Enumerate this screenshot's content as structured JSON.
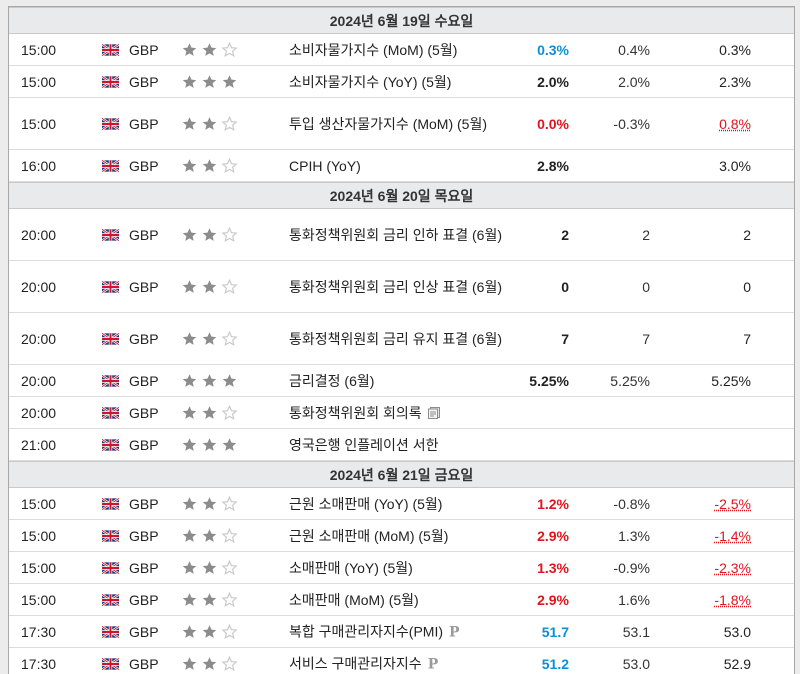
{
  "colors": {
    "accent_up": "#0a8fd9",
    "accent_down": "#e0141e",
    "day_header_bg": "#e9eaec",
    "star_on": "#8c8c8c",
    "star_off": "#c8c8c8"
  },
  "days": [
    {
      "title": "2024년 6월 19일 수요일",
      "events": [
        {
          "time": "15:00",
          "currency": "GBP",
          "stars": 2,
          "event": "소비자물가지수 (MoM) (5월)",
          "actual": "0.3%",
          "actual_status": "up",
          "forecast": "0.4%",
          "previous": "0.3%",
          "previous_status": "",
          "extra_icon": ""
        },
        {
          "time": "15:00",
          "currency": "GBP",
          "stars": 3,
          "event": "소비자물가지수 (YoY) (5월)",
          "actual": "2.0%",
          "actual_status": "",
          "forecast": "2.0%",
          "previous": "2.3%",
          "previous_status": "",
          "extra_icon": ""
        },
        {
          "time": "15:00",
          "currency": "GBP",
          "stars": 2,
          "event": "투입 생산자물가지수 (MoM) (5월)",
          "actual": "0.0%",
          "actual_status": "down",
          "forecast": "-0.3%",
          "previous": "0.8%",
          "previous_status": "bad",
          "extra_icon": ""
        },
        {
          "time": "16:00",
          "currency": "GBP",
          "stars": 2,
          "event": "CPIH (YoY)",
          "actual": "2.8%",
          "actual_status": "",
          "forecast": "",
          "previous": "3.0%",
          "previous_status": "",
          "extra_icon": ""
        }
      ]
    },
    {
      "title": "2024년 6월 20일 목요일",
      "events": [
        {
          "time": "20:00",
          "currency": "GBP",
          "stars": 2,
          "event": "통화정책위원회 금리 인하 표결 (6월)",
          "actual": "2",
          "actual_status": "",
          "forecast": "2",
          "previous": "2",
          "previous_status": "",
          "extra_icon": ""
        },
        {
          "time": "20:00",
          "currency": "GBP",
          "stars": 2,
          "event": "통화정책위원회 금리 인상 표결 (6월)",
          "actual": "0",
          "actual_status": "",
          "forecast": "0",
          "previous": "0",
          "previous_status": "",
          "extra_icon": ""
        },
        {
          "time": "20:00",
          "currency": "GBP",
          "stars": 2,
          "event": "통화정책위원회 금리 유지 표결 (6월)",
          "actual": "7",
          "actual_status": "",
          "forecast": "7",
          "previous": "7",
          "previous_status": "",
          "extra_icon": ""
        },
        {
          "time": "20:00",
          "currency": "GBP",
          "stars": 3,
          "event": "금리결정 (6월)",
          "actual": "5.25%",
          "actual_status": "",
          "forecast": "5.25%",
          "previous": "5.25%",
          "previous_status": "",
          "extra_icon": ""
        },
        {
          "time": "20:00",
          "currency": "GBP",
          "stars": 2,
          "event": "통화정책위원회 회의록",
          "actual": "",
          "actual_status": "",
          "forecast": "",
          "previous": "",
          "previous_status": "",
          "extra_icon": "document-icon"
        },
        {
          "time": "21:00",
          "currency": "GBP",
          "stars": 3,
          "event": "영국은행 인플레이션 서한",
          "actual": "",
          "actual_status": "",
          "forecast": "",
          "previous": "",
          "previous_status": "",
          "extra_icon": ""
        }
      ]
    },
    {
      "title": "2024년 6월 21일 금요일",
      "events": [
        {
          "time": "15:00",
          "currency": "GBP",
          "stars": 2,
          "event": "근원 소매판매 (YoY) (5월)",
          "actual": "1.2%",
          "actual_status": "down",
          "forecast": "-0.8%",
          "previous": "-2.5%",
          "previous_status": "bad",
          "extra_icon": ""
        },
        {
          "time": "15:00",
          "currency": "GBP",
          "stars": 2,
          "event": "근원 소매판매 (MoM) (5월)",
          "actual": "2.9%",
          "actual_status": "down",
          "forecast": "1.3%",
          "previous": "-1.4%",
          "previous_status": "bad",
          "extra_icon": ""
        },
        {
          "time": "15:00",
          "currency": "GBP",
          "stars": 2,
          "event": "소매판매 (YoY) (5월)",
          "actual": "1.3%",
          "actual_status": "down",
          "forecast": "-0.9%",
          "previous": "-2.3%",
          "previous_status": "bad",
          "extra_icon": ""
        },
        {
          "time": "15:00",
          "currency": "GBP",
          "stars": 2,
          "event": "소매판매 (MoM) (5월)",
          "actual": "2.9%",
          "actual_status": "down",
          "forecast": "1.6%",
          "previous": "-1.8%",
          "previous_status": "bad",
          "extra_icon": ""
        },
        {
          "time": "17:30",
          "currency": "GBP",
          "stars": 2,
          "event": "복합 구매관리자지수(PMI)",
          "actual": "51.7",
          "actual_status": "up",
          "forecast": "53.1",
          "previous": "53.0",
          "previous_status": "",
          "extra_icon": "preliminary-icon"
        },
        {
          "time": "17:30",
          "currency": "GBP",
          "stars": 2,
          "event": "서비스 구매관리자지수",
          "actual": "51.2",
          "actual_status": "up",
          "forecast": "53.0",
          "previous": "52.9",
          "previous_status": "",
          "extra_icon": "preliminary-icon"
        }
      ]
    }
  ]
}
